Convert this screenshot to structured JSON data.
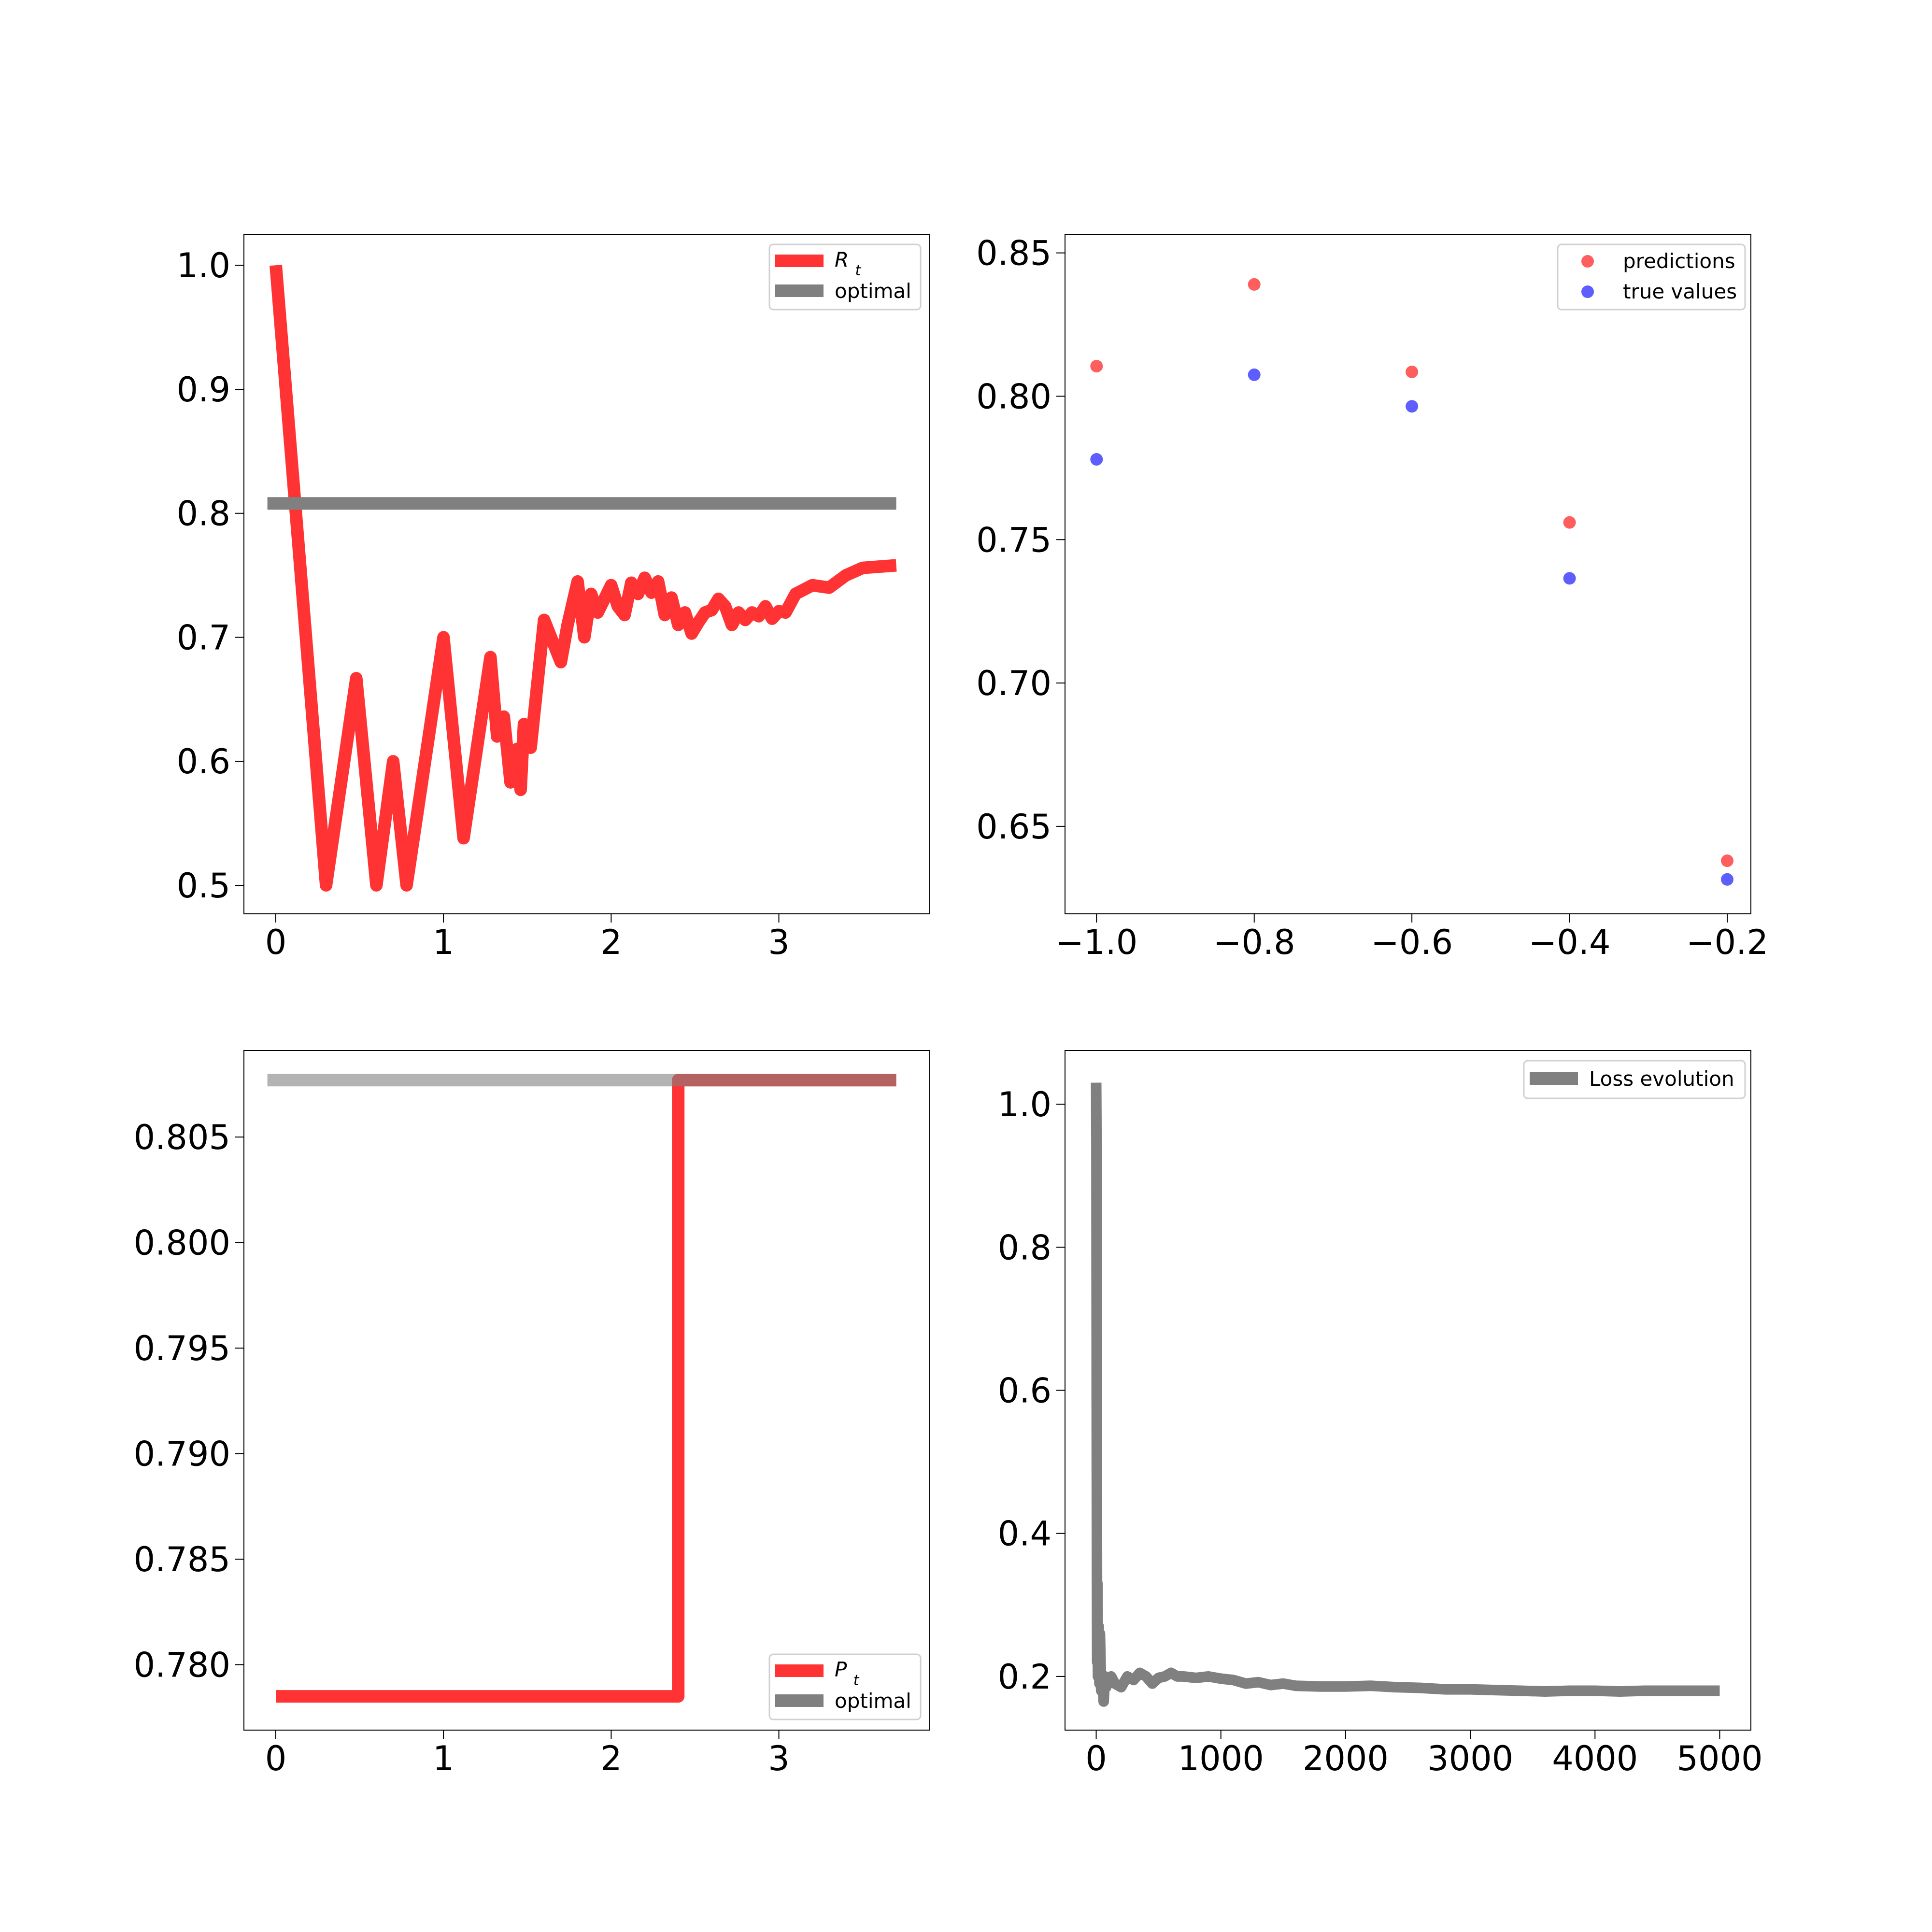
{
  "chart_data": [
    {
      "id": "rt",
      "type": "line",
      "xlim": [
        -0.19,
        3.9
      ],
      "ylim": [
        0.477,
        1.025
      ],
      "xticks": [
        0,
        1,
        2,
        3
      ],
      "yticks": [
        0.5,
        0.6,
        0.7,
        0.8,
        0.9,
        1.0
      ],
      "xtick_labels": [
        "0",
        "1",
        "2",
        "3"
      ],
      "ytick_labels": [
        "0.5",
        "0.6",
        "0.7",
        "0.8",
        "0.9",
        "1.0"
      ],
      "legend": {
        "position": "upper-right",
        "entries": [
          "R_t",
          "optimal"
        ]
      },
      "series": [
        {
          "name": "R_t",
          "color": "#ff3333",
          "x": [
            0,
            0.3,
            0.48,
            0.6,
            0.7,
            0.78,
            1.0,
            1.12,
            1.28,
            1.32,
            1.36,
            1.4,
            1.44,
            1.46,
            1.48,
            1.52,
            1.6,
            1.7,
            1.74,
            1.8,
            1.84,
            1.88,
            1.92,
            1.96,
            2.0,
            2.04,
            2.08,
            2.12,
            2.16,
            2.2,
            2.24,
            2.28,
            2.32,
            2.36,
            2.4,
            2.44,
            2.48,
            2.52,
            2.56,
            2.6,
            2.64,
            2.68,
            2.72,
            2.76,
            2.8,
            2.84,
            2.88,
            2.92,
            2.96,
            3.0,
            3.04,
            3.1,
            3.2,
            3.3,
            3.4,
            3.5,
            3.6,
            3.7
          ],
          "y": [
            1.0,
            0.5,
            0.667,
            0.5,
            0.6,
            0.5,
            0.7,
            0.538,
            0.684,
            0.62,
            0.636,
            0.583,
            0.61,
            0.577,
            0.63,
            0.611,
            0.714,
            0.68,
            0.71,
            0.745,
            0.7,
            0.735,
            0.72,
            0.731,
            0.742,
            0.725,
            0.718,
            0.744,
            0.735,
            0.748,
            0.736,
            0.745,
            0.718,
            0.732,
            0.71,
            0.72,
            0.703,
            0.712,
            0.72,
            0.722,
            0.731,
            0.725,
            0.71,
            0.72,
            0.714,
            0.72,
            0.717,
            0.725,
            0.715,
            0.721,
            0.72,
            0.735,
            0.742,
            0.74,
            0.75,
            0.756,
            0.757,
            0.758
          ]
        },
        {
          "name": "optimal",
          "color": "#808080",
          "x": [
            -0.05,
            3.7
          ],
          "y": [
            0.808,
            0.808
          ]
        }
      ]
    },
    {
      "id": "pred",
      "type": "scatter",
      "xlim": [
        -1.04,
        -0.17
      ],
      "ylim": [
        0.6195,
        0.8565
      ],
      "xticks": [
        -1.0,
        -0.8,
        -0.6,
        -0.4,
        -0.2
      ],
      "yticks": [
        0.65,
        0.7,
        0.75,
        0.8,
        0.85
      ],
      "xtick_labels": [
        "−1.0",
        "−0.8",
        "−0.6",
        "−0.4",
        "−0.2"
      ],
      "ytick_labels": [
        "0.65",
        "0.70",
        "0.75",
        "0.80",
        "0.85"
      ],
      "legend": {
        "position": "upper-right",
        "entries": [
          "predictions",
          "true values"
        ]
      },
      "series": [
        {
          "name": "predictions",
          "color": "#ff4d4d",
          "x": [
            -1.0,
            -0.8,
            -0.6,
            -0.4,
            -0.2
          ],
          "y": [
            0.8105,
            0.839,
            0.8085,
            0.756,
            0.638
          ]
        },
        {
          "name": "true values",
          "color": "#4d4dff",
          "x": [
            -1.0,
            -0.8,
            -0.6,
            -0.4,
            -0.2
          ],
          "y": [
            0.778,
            0.8075,
            0.7965,
            0.7365,
            0.6315
          ]
        }
      ]
    },
    {
      "id": "pt",
      "type": "line",
      "xlim": [
        -0.19,
        3.9
      ],
      "ylim": [
        0.7769,
        0.8091
      ],
      "xticks": [
        0,
        1,
        2,
        3
      ],
      "yticks": [
        0.78,
        0.785,
        0.79,
        0.795,
        0.8,
        0.805
      ],
      "xtick_labels": [
        "0",
        "1",
        "2",
        "3"
      ],
      "ytick_labels": [
        "0.780",
        "0.785",
        "0.790",
        "0.795",
        "0.800",
        "0.805"
      ],
      "legend": {
        "position": "lower-right",
        "entries": [
          "P_t",
          "optimal"
        ]
      },
      "series": [
        {
          "name": "P_t",
          "color": "#ff3333",
          "x": [
            0,
            2.4,
            2.4,
            3.7
          ],
          "y": [
            0.7785,
            0.7785,
            0.8077,
            0.8077
          ]
        },
        {
          "name": "optimal",
          "color": "#808080",
          "x": [
            -0.05,
            3.7
          ],
          "y": [
            0.8077,
            0.8077
          ]
        }
      ]
    },
    {
      "id": "loss",
      "type": "line",
      "xlim": [
        -250,
        5250
      ],
      "ylim": [
        0.125,
        1.075
      ],
      "xticks": [
        0,
        1000,
        2000,
        3000,
        4000,
        5000
      ],
      "yticks": [
        0.2,
        0.4,
        0.6,
        0.8,
        1.0
      ],
      "xtick_labels": [
        "0",
        "1000",
        "2000",
        "3000",
        "4000",
        "5000"
      ],
      "ytick_labels": [
        "0.2",
        "0.4",
        "0.6",
        "0.8",
        "1.0"
      ],
      "legend": {
        "position": "upper-right",
        "entries": [
          "Loss evolution"
        ]
      },
      "series": [
        {
          "name": "Loss evolution",
          "color": "#808080",
          "x": [
            0,
            2,
            4,
            6,
            8,
            10,
            14,
            20,
            26,
            30,
            40,
            50,
            60,
            70,
            80,
            100,
            120,
            150,
            200,
            250,
            300,
            350,
            400,
            450,
            500,
            550,
            600,
            650,
            700,
            800,
            900,
            1000,
            1100,
            1200,
            1300,
            1400,
            1500,
            1600,
            1800,
            2000,
            2200,
            2400,
            2600,
            2800,
            3000,
            3200,
            3400,
            3600,
            3800,
            4000,
            4200,
            4400,
            4600,
            4800,
            5000
          ],
          "y": [
            1.03,
            0.95,
            0.6,
            0.35,
            0.22,
            0.33,
            0.2,
            0.27,
            0.19,
            0.26,
            0.18,
            0.2,
            0.165,
            0.2,
            0.185,
            0.195,
            0.2,
            0.19,
            0.185,
            0.2,
            0.195,
            0.205,
            0.2,
            0.19,
            0.198,
            0.2,
            0.205,
            0.2,
            0.2,
            0.198,
            0.2,
            0.197,
            0.195,
            0.19,
            0.192,
            0.188,
            0.19,
            0.187,
            0.186,
            0.186,
            0.187,
            0.185,
            0.184,
            0.182,
            0.182,
            0.181,
            0.18,
            0.179,
            0.18,
            0.18,
            0.179,
            0.18,
            0.18,
            0.18,
            0.18
          ]
        }
      ]
    }
  ]
}
